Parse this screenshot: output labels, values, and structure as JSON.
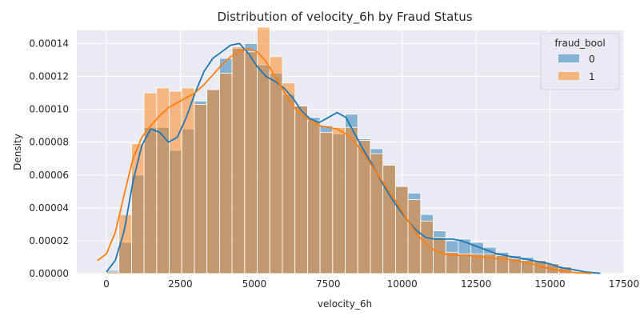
{
  "chart_data": {
    "type": "histogram",
    "title": "Distribution of velocity_6h by Fraud Status",
    "xlabel": "velocity_6h",
    "ylabel": "Density",
    "xlim": [
      -1000,
      17500
    ],
    "ylim": [
      0,
      0.000148
    ],
    "xticks": [
      0,
      2500,
      5000,
      7500,
      10000,
      12500,
      15000,
      17500
    ],
    "xtick_labels": [
      "0",
      "2500",
      "5000",
      "7500",
      "10000",
      "12500",
      "15000",
      "17500"
    ],
    "yticks": [
      0,
      2e-05,
      4e-05,
      6e-05,
      8e-05,
      0.0001,
      0.00012,
      0.00014
    ],
    "ytick_labels": [
      "0.00000",
      "0.00002",
      "0.00004",
      "0.00006",
      "0.00008",
      "0.00010",
      "0.00012",
      "0.00014"
    ],
    "grid": true,
    "legend": {
      "title": "fraud_bool",
      "placement": "top-right"
    },
    "bin_edges": [
      0,
      425,
      850,
      1275,
      1700,
      2125,
      2550,
      2975,
      3400,
      3825,
      4250,
      4675,
      5100,
      5525,
      5950,
      6375,
      6800,
      7225,
      7650,
      8075,
      8500,
      8925,
      9350,
      9775,
      10200,
      10625,
      11050,
      11475,
      11900,
      12325,
      12750,
      13175,
      13600,
      14025,
      14450,
      14875,
      15300,
      15725
    ],
    "series": [
      {
        "name": "0",
        "color": "#1f77b4",
        "values": [
          2e-06,
          1.9e-05,
          6e-05,
          8.9e-05,
          8.9e-05,
          7.5e-05,
          8.8e-05,
          0.000105,
          0.000112,
          0.000131,
          0.000137,
          0.00014,
          0.000127,
          0.000122,
          0.000109,
          0.000102,
          9.5e-05,
          9e-05,
          8.5e-05,
          9.7e-05,
          8.2e-05,
          7.6e-05,
          6.6e-05,
          5.3e-05,
          4.9e-05,
          3.6e-05,
          2.6e-05,
          2e-05,
          2.1e-05,
          1.9e-05,
          1.6e-05,
          1.3e-05,
          1.1e-05,
          1e-05,
          8e-06,
          6e-06,
          4e-06,
          2e-06
        ]
      },
      {
        "name": "1",
        "color": "#ff7f0e",
        "values": [
          1e-06,
          3.6e-05,
          7.9e-05,
          0.00011,
          0.000113,
          0.000111,
          0.000113,
          0.000103,
          0.000112,
          0.000122,
          0.000138,
          0.000135,
          0.00015,
          0.000132,
          0.000116,
          0.000102,
          9.3e-05,
          8.6e-05,
          8.9e-05,
          8.9e-05,
          8.1e-05,
          7.3e-05,
          6.6e-05,
          5.3e-05,
          4.5e-05,
          3.2e-05,
          2.2e-05,
          1.3e-05,
          1.2e-05,
          1.2e-05,
          1.2e-05,
          1.1e-05,
          9e-06,
          8e-06,
          8e-06,
          6e-06,
          4e-06,
          2e-06
        ]
      }
    ],
    "kde": [
      {
        "name": "0",
        "x": [
          0,
          300,
          600,
          900,
          1200,
          1500,
          1800,
          2100,
          2400,
          2700,
          3000,
          3300,
          3600,
          3900,
          4200,
          4500,
          4800,
          5100,
          5400,
          5700,
          6000,
          6300,
          6600,
          6900,
          7200,
          7500,
          7800,
          8100,
          8400,
          8700,
          9000,
          9300,
          9600,
          9900,
          10200,
          10500,
          10800,
          11100,
          11400,
          11700,
          12000,
          12300,
          12600,
          12900,
          13200,
          13500,
          13800,
          14100,
          14400,
          14700,
          15000,
          15300,
          15600,
          15900,
          16200,
          16500,
          16700
        ],
        "y": [
          1e-06,
          8e-06,
          2.6e-05,
          5.6e-05,
          7.8e-05,
          8.8e-05,
          8.6e-05,
          8e-05,
          8.3e-05,
          9.5e-05,
          0.00011,
          0.000123,
          0.000131,
          0.000135,
          0.000139,
          0.00014,
          0.000134,
          0.000126,
          0.00012,
          0.000117,
          0.000113,
          0.000107,
          9.9e-05,
          9.4e-05,
          9.2e-05,
          9.5e-05,
          9.8e-05,
          9.5e-05,
          8.5e-05,
          7.5e-05,
          6.6e-05,
          5.6e-05,
          4.7e-05,
          3.9e-05,
          3.2e-05,
          2.6e-05,
          2.2e-05,
          2.1e-05,
          2.1e-05,
          2.1e-05,
          2e-05,
          1.8e-05,
          1.6e-05,
          1.4e-05,
          1.2e-05,
          1.1e-05,
          1e-05,
          9e-06,
          8e-06,
          7e-06,
          6e-06,
          4e-06,
          3e-06,
          2e-06,
          1e-06,
          5e-07,
          2e-07
        ]
      },
      {
        "name": "1",
        "x": [
          -300,
          0,
          300,
          600,
          900,
          1200,
          1500,
          1800,
          2100,
          2400,
          2700,
          3000,
          3300,
          3600,
          3900,
          4200,
          4500,
          4800,
          5100,
          5400,
          5700,
          6000,
          6300,
          6600,
          6900,
          7200,
          7500,
          7800,
          8100,
          8400,
          8700,
          9000,
          9300,
          9600,
          9900,
          10200,
          10500,
          10800,
          11100,
          11400,
          11700,
          12000,
          12300,
          12600,
          12900,
          13200,
          13500,
          13800,
          14100,
          14400,
          14700,
          15000,
          15300,
          15600,
          15900,
          16200,
          16400
        ],
        "y": [
          8e-06,
          1.2e-05,
          2.5e-05,
          4.8e-05,
          7e-05,
          8.3e-05,
          9e-05,
          9.6e-05,
          0.000101,
          0.000104,
          0.000107,
          0.00011,
          0.000115,
          0.000121,
          0.000127,
          0.000132,
          0.000135,
          0.000137,
          0.000135,
          0.000129,
          0.00012,
          0.000111,
          0.000102,
          9.7e-05,
          9.3e-05,
          9e-05,
          8.9e-05,
          8.8e-05,
          8.5e-05,
          8e-05,
          7.3e-05,
          6.5e-05,
          5.7e-05,
          4.9e-05,
          4.1e-05,
          3.2e-05,
          2.4e-05,
          1.8e-05,
          1.4e-05,
          1.2e-05,
          1.1e-05,
          1.1e-05,
          1.1e-05,
          1e-05,
          1e-05,
          9e-06,
          9e-06,
          8e-06,
          7e-06,
          6e-06,
          4e-06,
          3e-06,
          2e-06,
          1e-06,
          6e-07,
          3e-07,
          1e-07
        ]
      }
    ]
  }
}
